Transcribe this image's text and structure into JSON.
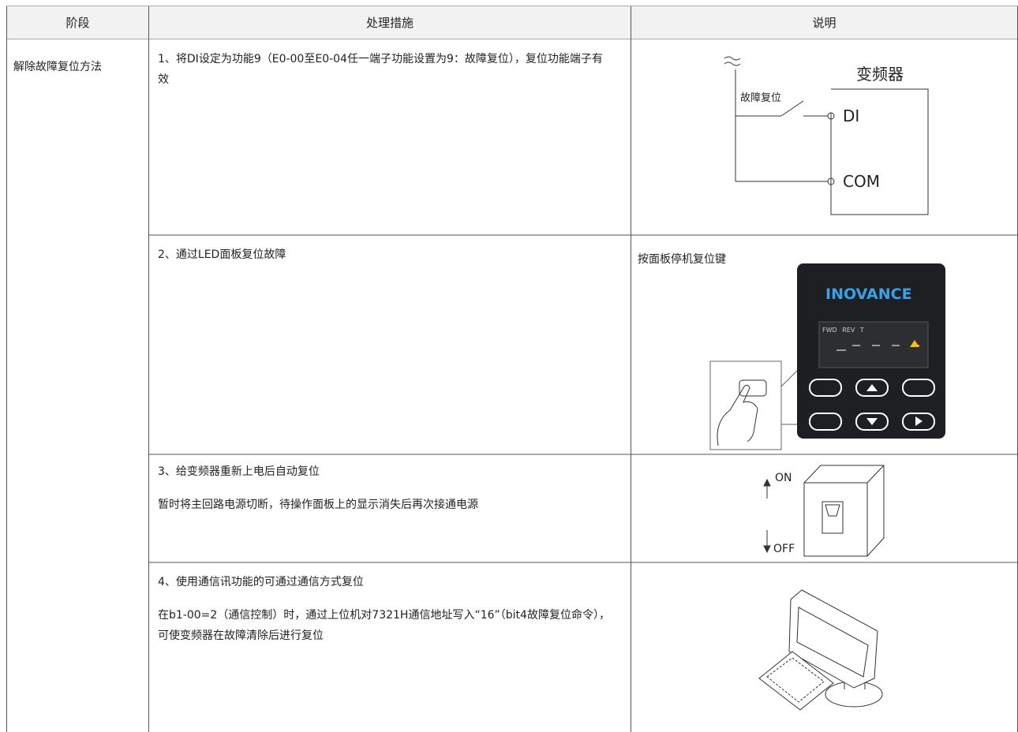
{
  "table": {
    "header": [
      "阶段",
      "处理措施",
      "说明"
    ],
    "stage": "解除故障复位方法",
    "rows": [
      {
        "measure": [
          "1、将DI设定为功能9（E0-00至E0-04任一端子功能设置为9：故障复位），复位功能端子有效"
        ],
        "description": "",
        "figure": {
          "device": "变频器",
          "switch": "故障复位",
          "terminals": [
            "DI",
            "COM"
          ]
        }
      },
      {
        "measure": [
          "2、通过LED面板复位故障"
        ],
        "description": "按面板停机复位键",
        "figure": {
          "brand": "INOVANCE",
          "indicators": [
            "FWD",
            "REV",
            "T"
          ]
        }
      },
      {
        "measure": [
          "3、给变频器重新上电后自动复位",
          "暂时将主回路电源切断，待操作面板上的显示消失后再次接通电源"
        ],
        "description": "",
        "figure": {
          "on": "ON",
          "off": "OFF"
        }
      },
      {
        "measure": [
          "4、使用通信讯功能的可通过通信方式复位",
          "在b1-00=2（通信控制）时，通过上位机对7321H通信地址写入“16”（bit4故障复位命令），可使变频器在故障清除后进行复位"
        ],
        "description": ""
      }
    ]
  }
}
